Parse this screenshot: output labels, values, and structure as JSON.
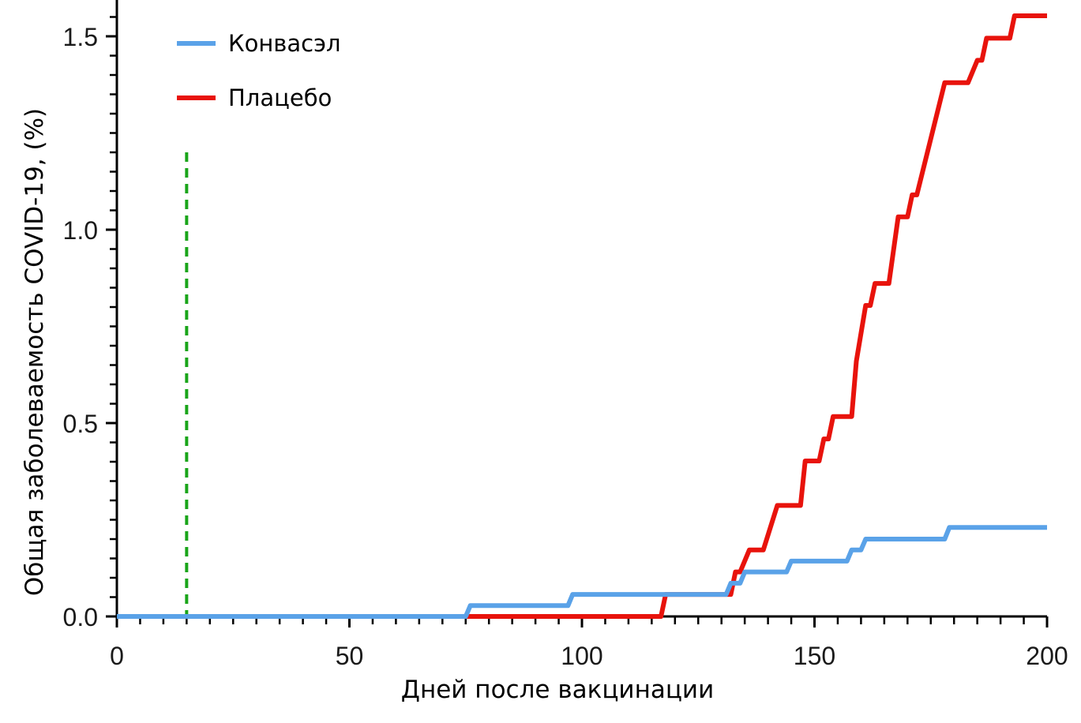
{
  "chart_data": {
    "type": "line",
    "title": "",
    "xlabel": "Дней после вакцинации",
    "ylabel": "Общая заболеваемость COVID-19, (%)",
    "xlim": [
      0,
      200
    ],
    "ylim": [
      0,
      1.6
    ],
    "x_ticks": [
      0,
      50,
      100,
      150,
      200
    ],
    "x_tick_labels": [
      "0",
      "50",
      "100",
      "150",
      "200"
    ],
    "y_ticks": [
      0,
      0.5,
      1.0,
      1.5
    ],
    "y_tick_labels": [
      "0.0",
      "0.5",
      "1.0",
      "1.5"
    ],
    "legend_position": "top-left",
    "grid": false,
    "reference_line": {
      "x": 15,
      "y_top": 1.2,
      "style": "dashed",
      "color": "#1aa51a"
    },
    "series": [
      {
        "name": "Конвасэл",
        "color": "#5aa2e8",
        "points": [
          [
            0,
            0
          ],
          [
            75,
            0
          ],
          [
            76,
            0.028
          ],
          [
            97,
            0.028
          ],
          [
            98,
            0.057
          ],
          [
            131,
            0.057
          ],
          [
            132,
            0.086
          ],
          [
            134,
            0.086
          ],
          [
            135,
            0.115
          ],
          [
            144,
            0.115
          ],
          [
            145,
            0.143
          ],
          [
            157,
            0.143
          ],
          [
            158,
            0.172
          ],
          [
            160,
            0.172
          ],
          [
            161,
            0.2
          ],
          [
            178,
            0.2
          ],
          [
            179,
            0.23
          ],
          [
            200,
            0.23
          ]
        ]
      },
      {
        "name": "Плацебо",
        "color": "#e8130c",
        "points": [
          [
            0,
            0
          ],
          [
            117,
            0
          ],
          [
            118,
            0.057
          ],
          [
            132,
            0.057
          ],
          [
            133,
            0.115
          ],
          [
            134,
            0.115
          ],
          [
            136,
            0.172
          ],
          [
            139,
            0.172
          ],
          [
            142,
            0.287
          ],
          [
            147,
            0.287
          ],
          [
            148,
            0.402
          ],
          [
            151,
            0.402
          ],
          [
            152,
            0.459
          ],
          [
            153,
            0.459
          ],
          [
            154,
            0.517
          ],
          [
            158,
            0.517
          ],
          [
            159,
            0.66
          ],
          [
            161,
            0.804
          ],
          [
            162,
            0.804
          ],
          [
            163,
            0.861
          ],
          [
            166,
            0.861
          ],
          [
            168,
            1.033
          ],
          [
            170,
            1.033
          ],
          [
            171,
            1.09
          ],
          [
            172,
            1.09
          ],
          [
            178,
            1.38
          ],
          [
            183,
            1.38
          ],
          [
            185,
            1.438
          ],
          [
            186,
            1.438
          ],
          [
            187,
            1.495
          ],
          [
            192,
            1.495
          ],
          [
            193,
            1.553
          ],
          [
            200,
            1.553
          ]
        ]
      }
    ]
  }
}
